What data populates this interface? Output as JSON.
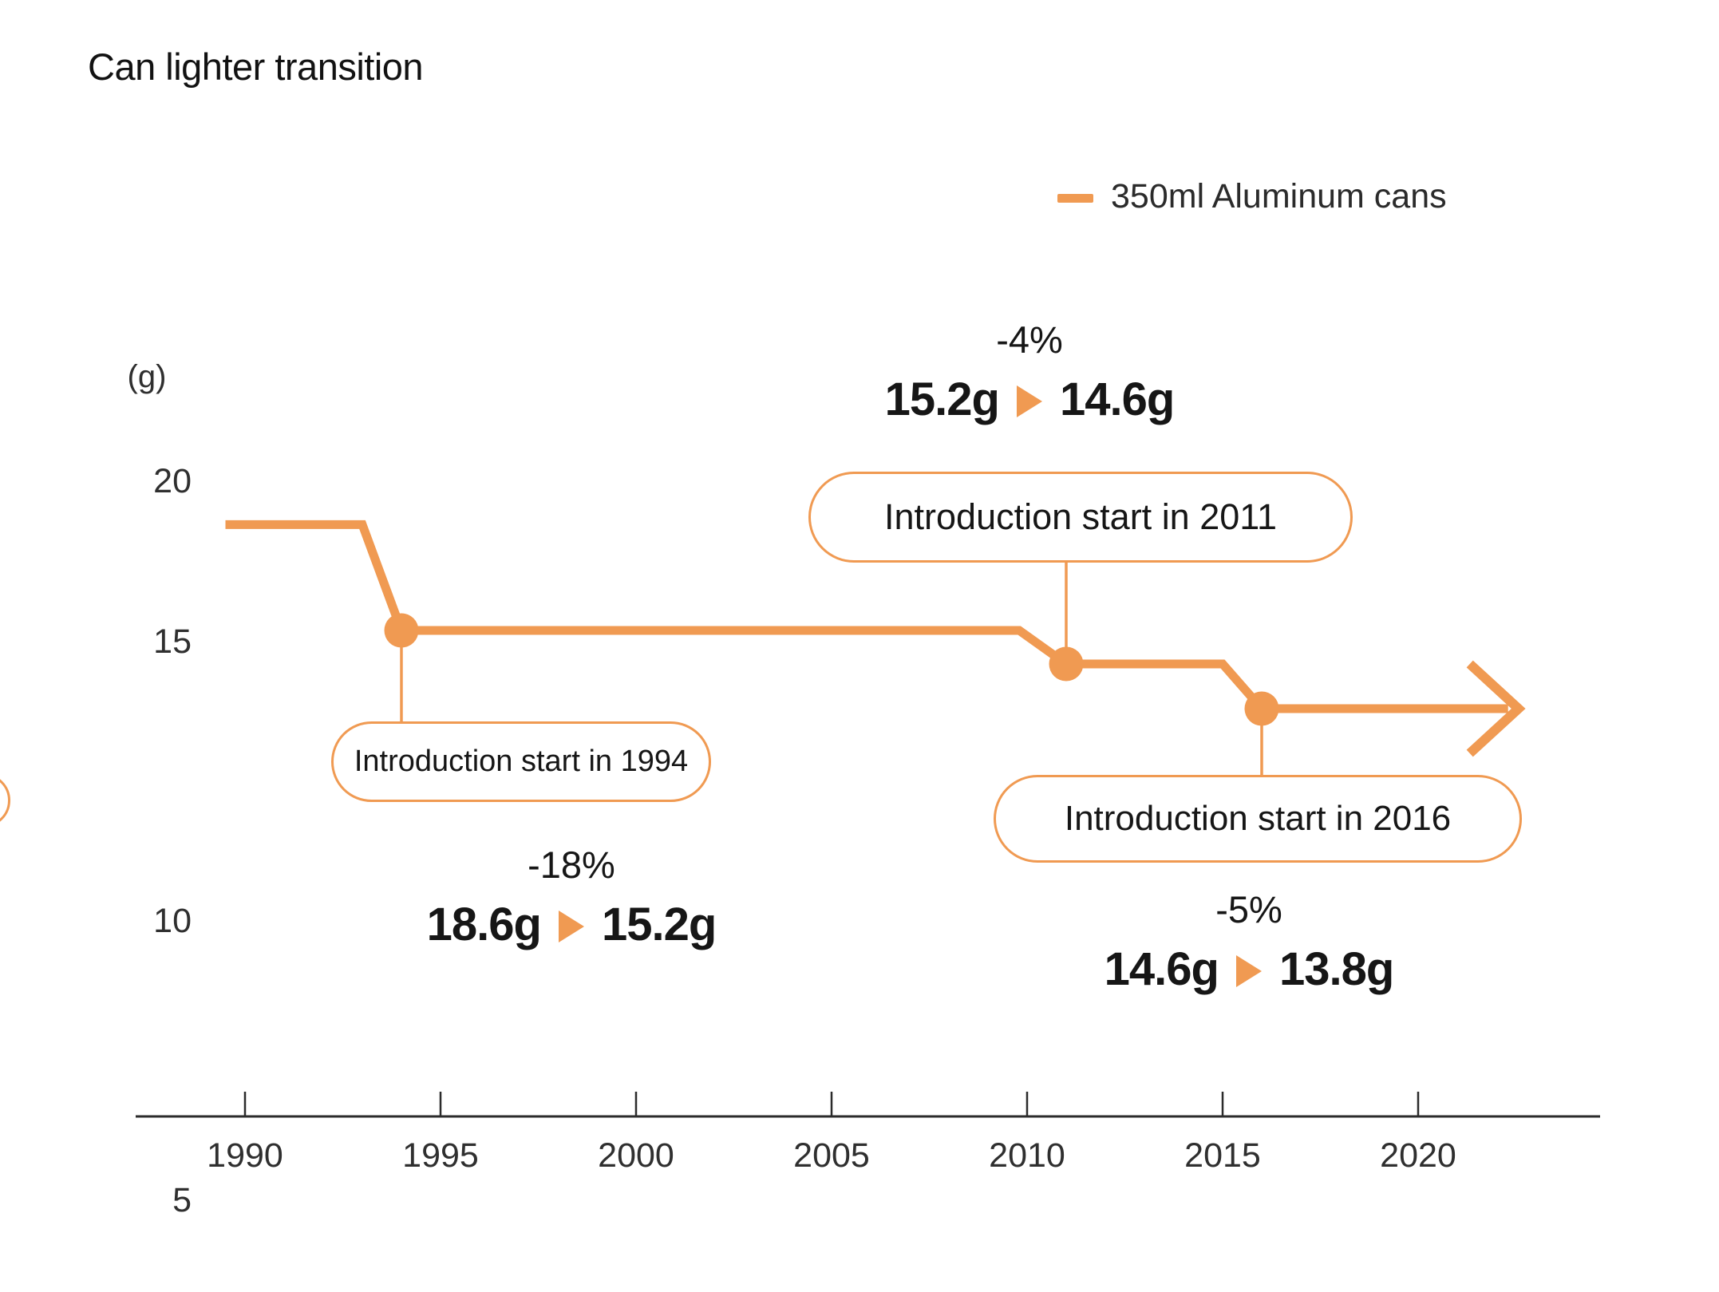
{
  "title": "Can lighter transition",
  "legend": {
    "label": "350ml Aluminum cans",
    "color": "#F09A52"
  },
  "y_axis": {
    "unit": "(g)",
    "ticks": [
      "20",
      "15",
      "10",
      "5"
    ]
  },
  "x_axis": {
    "ticks": [
      "1990",
      "1995",
      "2000",
      "2005",
      "2010",
      "2015",
      "2020"
    ]
  },
  "chart_data": {
    "type": "line",
    "title": "Can lighter transition",
    "ylabel": "(g)",
    "legend_position": "top-right",
    "grid": false,
    "x_ticks": [
      1990,
      1995,
      2000,
      2005,
      2010,
      2015,
      2020
    ],
    "y_ticks": [
      20,
      15,
      10,
      5
    ],
    "x_range": [
      1989.5,
      2023
    ],
    "arrow_at_end": true,
    "series": [
      {
        "name": "350ml Aluminum cans",
        "unit": "g",
        "points": [
          {
            "year": 1989.5,
            "value": 18.6
          },
          {
            "year": 1993,
            "value": 18.6
          },
          {
            "year": 1994,
            "value": 15.2
          },
          {
            "year": 2009.8,
            "value": 15.2
          },
          {
            "year": 2011,
            "value": 14.6
          },
          {
            "year": 2015,
            "value": 14.6
          },
          {
            "year": 2016,
            "value": 13.8
          },
          {
            "year": 2022.3,
            "value": 13.8
          }
        ]
      }
    ],
    "markers": [
      {
        "year": 1994,
        "value": 15.2
      },
      {
        "year": 2011,
        "value": 14.6
      },
      {
        "year": 2016,
        "value": 13.8
      }
    ]
  },
  "annotations": {
    "a1994": {
      "pct": "-18%",
      "from": "18.6g",
      "to": "15.2g",
      "callout": "Introduction start in 1994"
    },
    "a2011": {
      "pct": "-4%",
      "from": "15.2g",
      "to": "14.6g",
      "callout": "Introduction start in 2011"
    },
    "a2016": {
      "pct": "-5%",
      "from": "14.6g",
      "to": "13.8g",
      "callout": "Introduction start in 2016"
    }
  }
}
